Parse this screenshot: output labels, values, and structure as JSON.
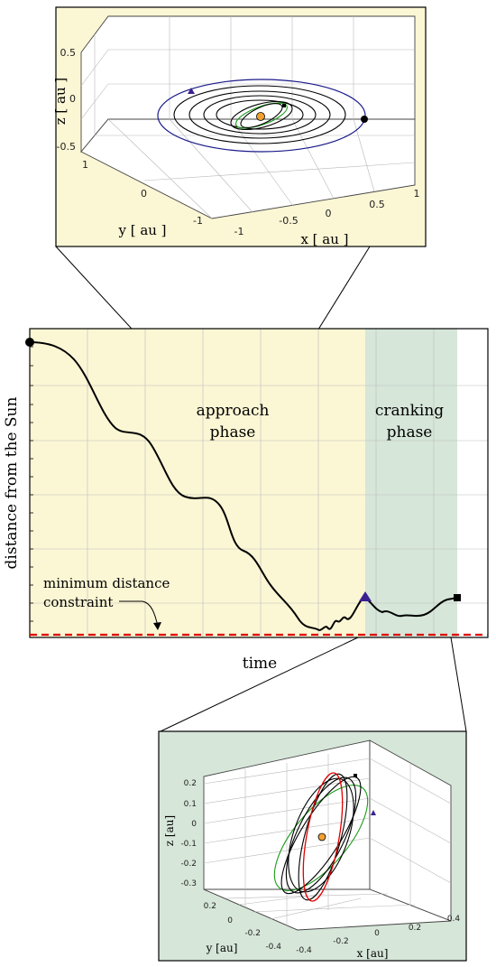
{
  "top_inset": {
    "z_label": "z [ au ]",
    "y_label": "y [ au ]",
    "x_label": "x [ au ]",
    "z_ticks": [
      "0.5",
      "0",
      "-0.5"
    ],
    "y_ticks": [
      "1",
      "0",
      "-1"
    ],
    "x_ticks": [
      "-1",
      "-0.5",
      "0",
      "0.5",
      "1"
    ],
    "panel_color": "#fbf6d4"
  },
  "main": {
    "y_label": "distance from the Sun",
    "x_label": "time",
    "approach_label_1": "approach",
    "approach_label_2": "phase",
    "cranking_label_1": "cranking",
    "cranking_label_2": "phase",
    "constraint_label_1": "minimum distance",
    "constraint_label_2": "constraint",
    "approach_color": "#fbf6d4",
    "cranking_color": "#d6e6d9",
    "constraint_color": "#e00000"
  },
  "bottom_inset": {
    "z_label": "z [au]",
    "y_label": "y [au]",
    "x_label": "x [au]",
    "z_ticks": [
      "0.2",
      "0.1",
      "0",
      "-0.1",
      "-0.2",
      "-0.3"
    ],
    "y_ticks": [
      "0.2",
      "0",
      "-0.2",
      "-0.4"
    ],
    "x_ticks": [
      "-0.4",
      "-0.2",
      "0",
      "0.2",
      "0.4"
    ],
    "panel_color": "#d6e6d9"
  }
}
